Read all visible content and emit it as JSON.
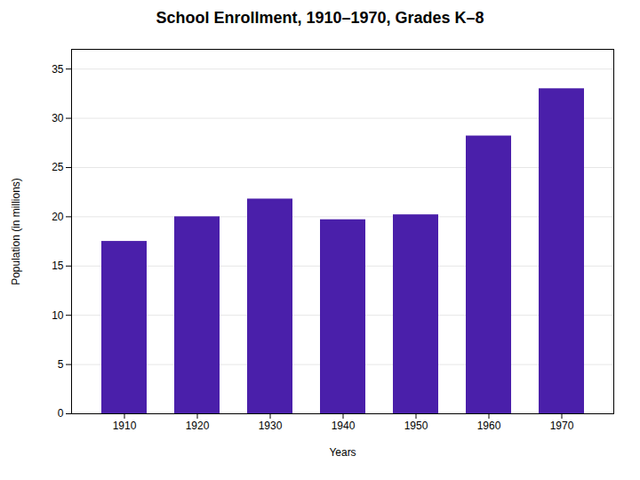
{
  "chart_data": {
    "type": "bar",
    "title": "School Enrollment, 1910–1970, Grades K–8",
    "xlabel": "Years",
    "ylabel": "Population (in millions)",
    "categories": [
      "1910",
      "1920",
      "1930",
      "1940",
      "1950",
      "1960",
      "1970"
    ],
    "values": [
      17.5,
      20.0,
      21.8,
      19.7,
      20.2,
      28.2,
      33.0
    ],
    "color": "#4a1faa",
    "ylim": [
      0,
      37
    ],
    "yticks": [
      0,
      5,
      10,
      15,
      20,
      25,
      30,
      35
    ],
    "grid": true
  }
}
